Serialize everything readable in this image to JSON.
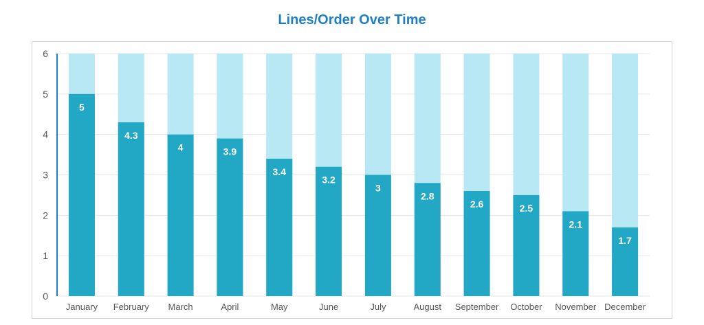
{
  "chart_data": {
    "type": "bar",
    "title": "Lines/Order Over Time",
    "categories": [
      "January",
      "February",
      "March",
      "April",
      "May",
      "June",
      "July",
      "August",
      "September",
      "October",
      "November",
      "December"
    ],
    "values": [
      5,
      4.3,
      4,
      3.9,
      3.4,
      3.2,
      3,
      2.8,
      2.6,
      2.5,
      2.1,
      1.7
    ],
    "value_labels": [
      "5",
      "4.3",
      "4",
      "3.9",
      "3.4",
      "3.2",
      "3",
      "2.8",
      "2.6",
      "2.5",
      "2.1",
      "1.7"
    ],
    "background_value": 6,
    "ylim": [
      0,
      6
    ],
    "yticks": [
      "0",
      "1",
      "2",
      "3",
      "4",
      "5",
      "6"
    ],
    "grid": true,
    "colors": {
      "bar": "#22a7c5",
      "background_bar": "#b8e8f3",
      "title": "#1f7fc4",
      "axis": "#1f7fc4",
      "grid": "#e6e6e6"
    }
  }
}
